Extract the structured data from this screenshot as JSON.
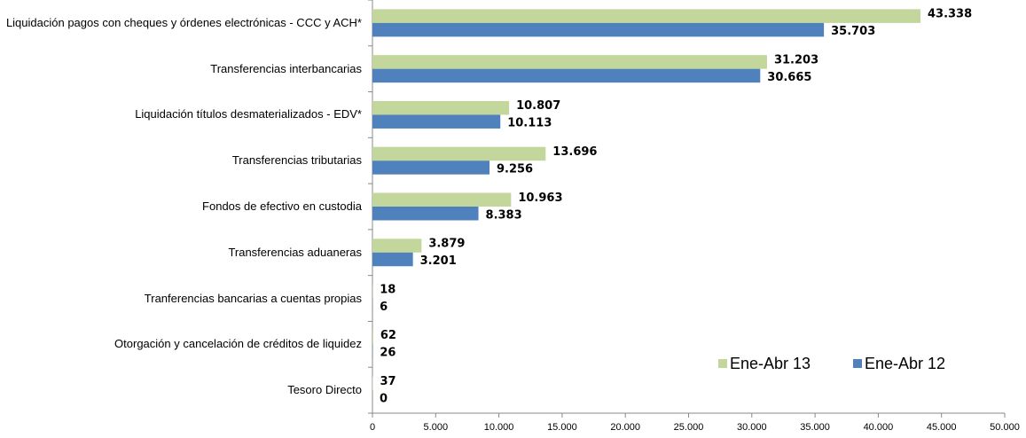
{
  "chart_data": {
    "type": "bar",
    "orientation": "horizontal",
    "categories": [
      "Liquidación pagos con cheques y órdenes electrónicas - CCC y ACH*",
      "Transferencias interbancarias",
      "Liquidación títulos desmaterializados - EDV*",
      "Transferencias tributarias",
      "Fondos de efectivo en custodia",
      "Transferencias aduaneras",
      "Tranferencias bancarias a cuentas propias",
      "Otorgación y cancelación de créditos de liquidez",
      "Tesoro Directo"
    ],
    "series": [
      {
        "name": "Ene-Abr 13",
        "color": "#c3d69b",
        "label_color": "#77933c",
        "values": [
          43338,
          31203,
          10807,
          13696,
          10963,
          3879,
          18,
          62,
          37
        ],
        "value_labels": [
          "43.338",
          "31.203",
          "10.807",
          "13.696",
          "10.963",
          "3.879",
          "18",
          "62",
          "37"
        ]
      },
      {
        "name": "Ene-Abr 12",
        "color": "#4f81bd",
        "label_color": "#376092",
        "values": [
          35703,
          30665,
          10113,
          9256,
          8383,
          3201,
          6,
          26,
          0
        ],
        "value_labels": [
          "35.703",
          "30.665",
          "10.113",
          "9.256",
          "8.383",
          "3.201",
          "6",
          "26",
          "0"
        ]
      }
    ],
    "xlim": [
      0,
      50000
    ],
    "xticks": [
      0,
      {
        "value": 5000,
        "label": "5.000"
      },
      {
        "value": 10000,
        "label": "10.000"
      },
      {
        "value": 15000,
        "label": "15.000"
      },
      {
        "value": 20000,
        "label": "20.000"
      },
      {
        "value": 25000,
        "label": "25.000"
      },
      {
        "value": 30000,
        "label": "30.000"
      },
      {
        "value": 35000,
        "label": "35.000"
      },
      {
        "value": 40000,
        "label": "40.000"
      },
      {
        "value": 45000,
        "label": "45.000"
      },
      {
        "value": 50000,
        "label": "50.000"
      }
    ],
    "grid": false,
    "legend": "lower right"
  }
}
